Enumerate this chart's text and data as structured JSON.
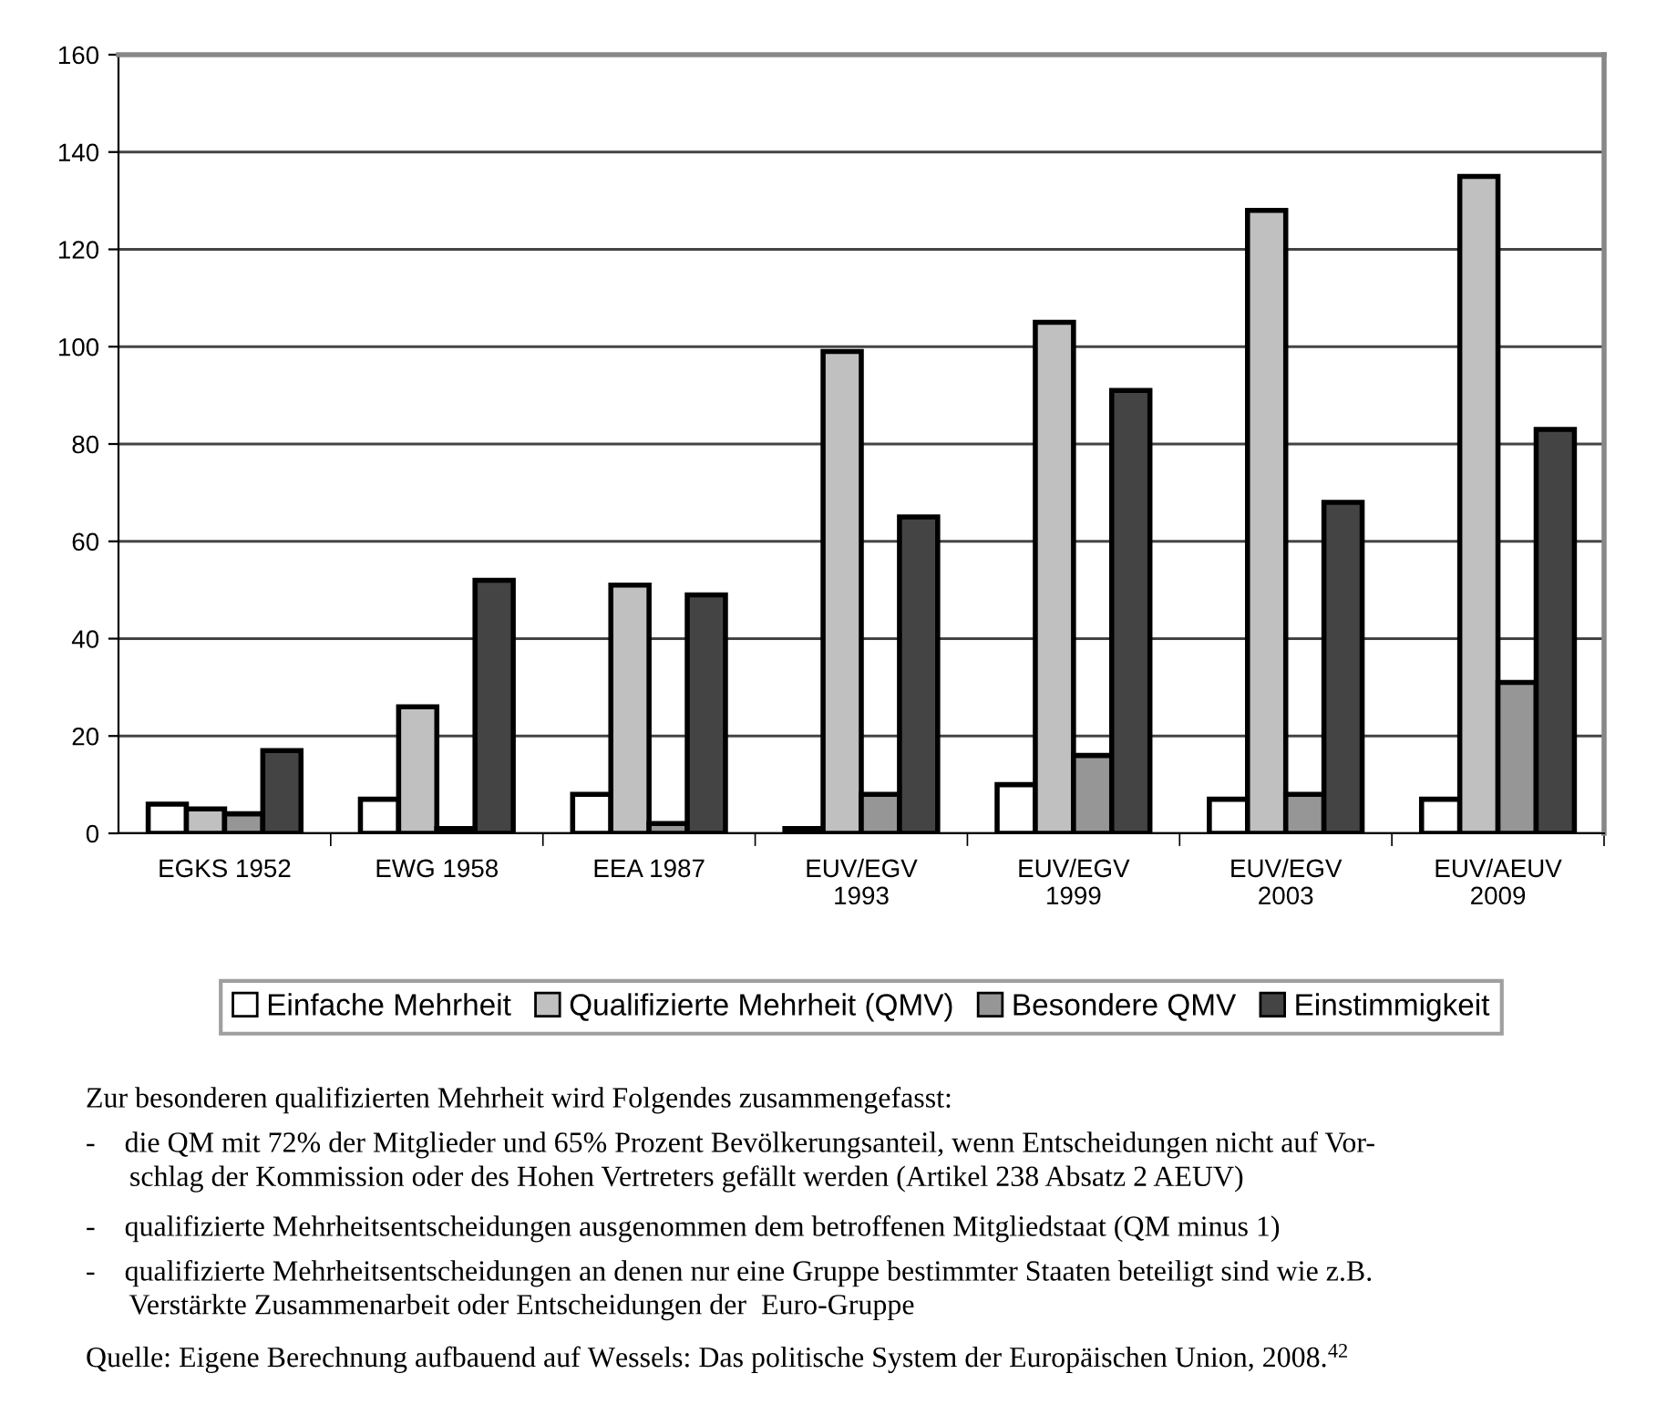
{
  "chart_data": {
    "type": "bar",
    "categories": [
      "EGKS 1952",
      "EWG 1958",
      "EEA 1987",
      "EUV/EGV\n1993",
      "EUV/EGV\n1999",
      "EUV/EGV\n2003",
      "EUV/AEUV\n2009"
    ],
    "series": [
      {
        "name": "Einfache Mehrheit",
        "color": "#ffffff",
        "values": [
          6,
          7,
          8,
          1,
          10,
          7,
          7
        ]
      },
      {
        "name": "Qualifizierte Mehrheit (QMV)",
        "color": "#c0c0c0",
        "values": [
          5,
          26,
          51,
          99,
          105,
          128,
          135
        ]
      },
      {
        "name": "Besondere QMV",
        "color": "#969696",
        "values": [
          4,
          1,
          2,
          8,
          16,
          8,
          31
        ]
      },
      {
        "name": "Einstimmigkeit",
        "color": "#444444",
        "values": [
          17,
          52,
          49,
          65,
          91,
          68,
          83
        ]
      }
    ],
    "ylim": [
      0,
      160
    ],
    "yticks": [
      0,
      20,
      40,
      60,
      80,
      100,
      120,
      140,
      160
    ],
    "grid": "y",
    "legend": "bottom",
    "annotations": [
      "Zur besonderen qualifizierten Mehrheit wird Folgendes zusammengefasst:",
      "-    die QM mit 72% der Mitglieder und 65% Prozent Bevölkerungsanteil, wenn Entscheidungen nicht auf Vor-\n      schlag der Kommission oder des Hohen Vertreters gefällt werden (Artikel 238 Absatz 2 AEUV)",
      "-    qualifizierte Mehrheitsentscheidungen ausgenommen dem betroffenen Mitgliedstaat (QM minus 1)",
      "-    qualifizierte Mehrheitsentscheidungen an denen nur eine Gruppe bestimmter Staaten beteiligt sind wie z.B.\n      Verstärkte Zusammenarbeit oder Entscheidungen der  Euro-Gruppe",
      "Quelle: Eigene Berechnung aufbauend auf Wessels: Das politische System der Europäischen Union, 2008.$^{42}$"
    ]
  }
}
